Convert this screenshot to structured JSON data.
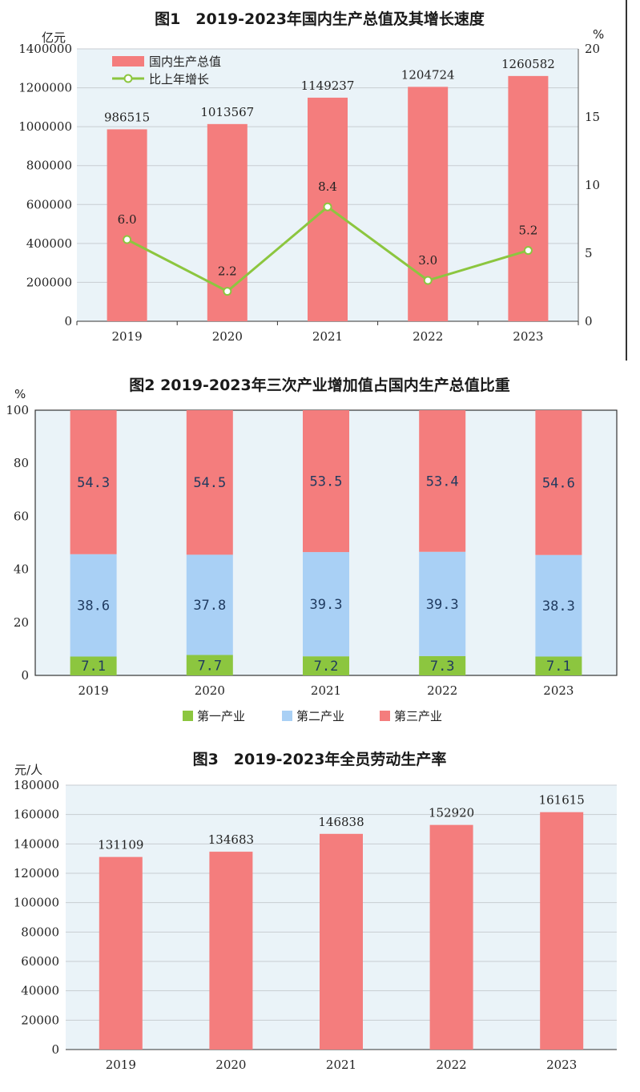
{
  "chart_data": [
    {
      "type": "bar+line",
      "title": "图1　2019-2023年国内生产总值及其增长速度",
      "left_unit": "亿元",
      "right_unit": "%",
      "categories": [
        "2019",
        "2020",
        "2021",
        "2022",
        "2023"
      ],
      "left_ylim": [
        0,
        1400000
      ],
      "left_ticks": [
        "0",
        "200000",
        "400000",
        "600000",
        "800000",
        "1000000",
        "1200000",
        "1400000"
      ],
      "right_ylim": [
        0,
        20
      ],
      "right_ticks": [
        "0",
        "5",
        "10",
        "15",
        "20"
      ],
      "series": [
        {
          "name": "国内生产总值",
          "kind": "bar",
          "axis": "left",
          "color": "#f47d7d",
          "values": [
            986515,
            1013567,
            1149237,
            1204724,
            1260582
          ],
          "labels": [
            "986515",
            "1013567",
            "1149237",
            "1204724",
            "1260582"
          ]
        },
        {
          "name": "比上年增长",
          "kind": "line",
          "axis": "right",
          "color": "#8cc63f",
          "values": [
            6.0,
            2.2,
            8.4,
            3.0,
            5.2
          ],
          "labels": [
            "6.0",
            "2.2",
            "8.4",
            "3.0",
            "5.2"
          ]
        }
      ]
    },
    {
      "type": "stacked-bar",
      "title": "图2 2019-2023年三次产业增加值占国内生产总值比重",
      "unit": "%",
      "categories": [
        "2019",
        "2020",
        "2021",
        "2022",
        "2023"
      ],
      "ylim": [
        0,
        100
      ],
      "ticks": [
        "0",
        "20",
        "40",
        "60",
        "80",
        "100"
      ],
      "series": [
        {
          "name": "第一产业",
          "color": "#8cc63f",
          "values": [
            7.1,
            7.7,
            7.2,
            7.3,
            7.1
          ],
          "labels": [
            "7.1",
            "7.7",
            "7.2",
            "7.3",
            "7.1"
          ]
        },
        {
          "name": "第二产业",
          "color": "#a9d0f5",
          "values": [
            38.6,
            37.8,
            39.3,
            39.3,
            38.3
          ],
          "labels": [
            "38.6",
            "37.8",
            "39.3",
            "39.3",
            "38.3"
          ]
        },
        {
          "name": "第三产业",
          "color": "#f47d7d",
          "values": [
            54.3,
            54.5,
            53.5,
            53.4,
            54.6
          ],
          "labels": [
            "54.3",
            "54.5",
            "53.5",
            "53.4",
            "54.6"
          ]
        }
      ]
    },
    {
      "type": "bar",
      "title": "图3　2019-2023年全员劳动生产率",
      "unit": "元/人",
      "categories": [
        "2019",
        "2020",
        "2021",
        "2022",
        "2023"
      ],
      "ylim": [
        0,
        180000
      ],
      "ticks": [
        "0",
        "20000",
        "40000",
        "60000",
        "80000",
        "100000",
        "120000",
        "140000",
        "160000",
        "180000"
      ],
      "series": [
        {
          "name": "全员劳动生产率",
          "color": "#f47d7d",
          "values": [
            131109,
            134683,
            146838,
            152920,
            161615
          ],
          "labels": [
            "131109",
            "134683",
            "146838",
            "152920",
            "161615"
          ]
        }
      ]
    }
  ]
}
